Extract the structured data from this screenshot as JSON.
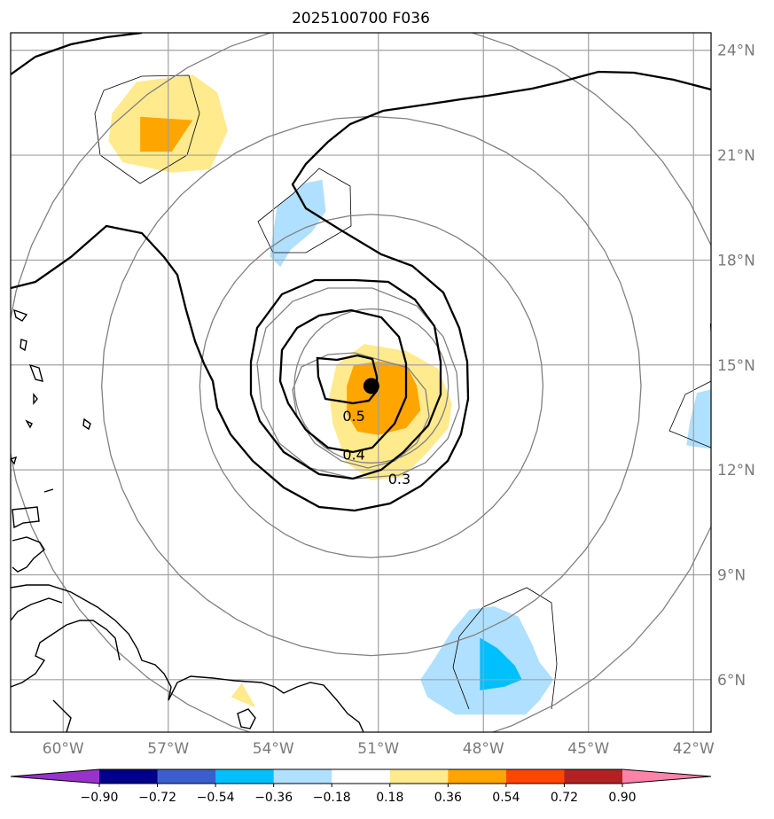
{
  "chart_data": {
    "type": "map-contour",
    "title": "2025100700 F036",
    "extent": {
      "lon": [
        -61.5,
        -41.5
      ],
      "lat": [
        4.5,
        24.5
      ]
    },
    "lat_ticks": [
      {
        "value": 24,
        "label": "24°N"
      },
      {
        "value": 21,
        "label": "21°N"
      },
      {
        "value": 18,
        "label": "18°N"
      },
      {
        "value": 15,
        "label": "15°N"
      },
      {
        "value": 12,
        "label": "12°N"
      },
      {
        "value": 9,
        "label": "9°N"
      },
      {
        "value": 6,
        "label": "6°N"
      }
    ],
    "lon_ticks": [
      {
        "value": -60,
        "label": "60°W"
      },
      {
        "value": -57,
        "label": "57°W"
      },
      {
        "value": -54,
        "label": "54°W"
      },
      {
        "value": -51,
        "label": "51°W"
      },
      {
        "value": -48,
        "label": "48°W"
      },
      {
        "value": -45,
        "label": "45°W"
      },
      {
        "value": -42,
        "label": "42°W"
      }
    ],
    "storm_center": {
      "lon": -51.2,
      "lat": 14.4
    },
    "range_rings_deg": [
      2.2,
      4.9,
      7.7,
      10.5
    ],
    "contour_labels": [
      {
        "text": "0.5",
        "lon": -51.7,
        "lat": 13.4
      },
      {
        "text": "0.4",
        "lon": -51.7,
        "lat": 12.3
      },
      {
        "text": "0.3",
        "lon": -50.4,
        "lat": 11.6
      }
    ],
    "colorbar": {
      "levels": [
        -0.9,
        -0.72,
        -0.54,
        -0.36,
        -0.18,
        0.18,
        0.36,
        0.54,
        0.72,
        0.9
      ],
      "tick_labels": [
        "−0.90",
        "−0.72",
        "−0.54",
        "−0.36",
        "−0.18",
        "0.18",
        "0.36",
        "0.54",
        "0.72",
        "0.90"
      ],
      "colors": [
        "#9932cc",
        "#00008b",
        "#3a5fcd",
        "#00bfff",
        "#b0e0ff",
        "#ffffff",
        "#ffea8e",
        "#ffa500",
        "#ff4500",
        "#b22222",
        "#ff82ab"
      ]
    },
    "shaded_regions": [
      {
        "level": 0.18,
        "color": "#ffea8e",
        "lonlat": [
          [
            -58.6,
            22.2
          ],
          [
            -57.9,
            23.1
          ],
          [
            -56.3,
            23.3
          ],
          [
            -55.6,
            22.8
          ],
          [
            -55.3,
            21.7
          ],
          [
            -55.8,
            20.6
          ],
          [
            -56.9,
            20.5
          ],
          [
            -58.3,
            20.8
          ],
          [
            -58.7,
            21.4
          ]
        ]
      },
      {
        "level": 0.36,
        "color": "#ffa500",
        "lonlat": [
          [
            -57.8,
            22.1
          ],
          [
            -56.3,
            22.0
          ],
          [
            -56.9,
            21.1
          ],
          [
            -57.8,
            21.1
          ]
        ]
      },
      {
        "level": -0.18,
        "color": "#b0e0ff",
        "lonlat": [
          [
            -53.9,
            19.5
          ],
          [
            -53.1,
            20.2
          ],
          [
            -52.6,
            20.3
          ],
          [
            -52.5,
            19.4
          ],
          [
            -52.9,
            18.8
          ],
          [
            -53.5,
            18.3
          ],
          [
            -53.8,
            17.8
          ],
          [
            -54.1,
            18.1
          ]
        ]
      },
      {
        "level": 0.18,
        "color": "#ffea8e",
        "lonlat": [
          [
            -52.2,
            15.0
          ],
          [
            -51.4,
            15.6
          ],
          [
            -50.2,
            15.4
          ],
          [
            -49.3,
            14.9
          ],
          [
            -48.9,
            13.9
          ],
          [
            -49.0,
            13.2
          ],
          [
            -49.6,
            12.5
          ],
          [
            -50.3,
            11.8
          ],
          [
            -51.2,
            11.7
          ],
          [
            -51.9,
            12.2
          ],
          [
            -52.3,
            13.3
          ],
          [
            -52.4,
            14.1
          ]
        ]
      },
      {
        "level": 0.36,
        "color": "#ffa500",
        "lonlat": [
          [
            -51.7,
            15.0
          ],
          [
            -51.0,
            15.1
          ],
          [
            -50.2,
            15.0
          ],
          [
            -49.9,
            14.4
          ],
          [
            -49.8,
            13.7
          ],
          [
            -50.2,
            13.2
          ],
          [
            -51.0,
            13.0
          ],
          [
            -51.6,
            13.1
          ],
          [
            -51.9,
            13.6
          ],
          [
            -51.9,
            14.4
          ]
        ]
      },
      {
        "level": -0.18,
        "color": "#b0e0ff",
        "lonlat": [
          [
            -41.5,
            14.3
          ],
          [
            -41.9,
            14.2
          ],
          [
            -42.1,
            13.4
          ],
          [
            -42.2,
            12.7
          ],
          [
            -41.5,
            12.6
          ]
        ]
      },
      {
        "level": -0.18,
        "color": "#b0e0ff",
        "lonlat": [
          [
            -48.9,
            7.4
          ],
          [
            -48.4,
            8.0
          ],
          [
            -47.7,
            8.1
          ],
          [
            -47.0,
            7.8
          ],
          [
            -46.6,
            7.0
          ],
          [
            -46.4,
            6.5
          ],
          [
            -46.0,
            6.0
          ],
          [
            -46.4,
            5.4
          ],
          [
            -46.8,
            5.0
          ],
          [
            -48.8,
            5.0
          ],
          [
            -49.6,
            5.5
          ],
          [
            -49.8,
            6.0
          ],
          [
            -49.4,
            6.6
          ]
        ]
      },
      {
        "level": -0.36,
        "color": "#00bfff",
        "lonlat": [
          [
            -48.1,
            7.2
          ],
          [
            -47.6,
            6.9
          ],
          [
            -47.1,
            6.4
          ],
          [
            -46.9,
            6.0
          ],
          [
            -47.4,
            5.8
          ],
          [
            -48.1,
            5.7
          ],
          [
            -48.1,
            6.5
          ]
        ]
      },
      {
        "level": 0.18,
        "color": "#ffea8e",
        "lonlat": [
          [
            -55.2,
            5.5
          ],
          [
            -54.5,
            5.2
          ],
          [
            -54.9,
            5.9
          ]
        ]
      }
    ]
  }
}
